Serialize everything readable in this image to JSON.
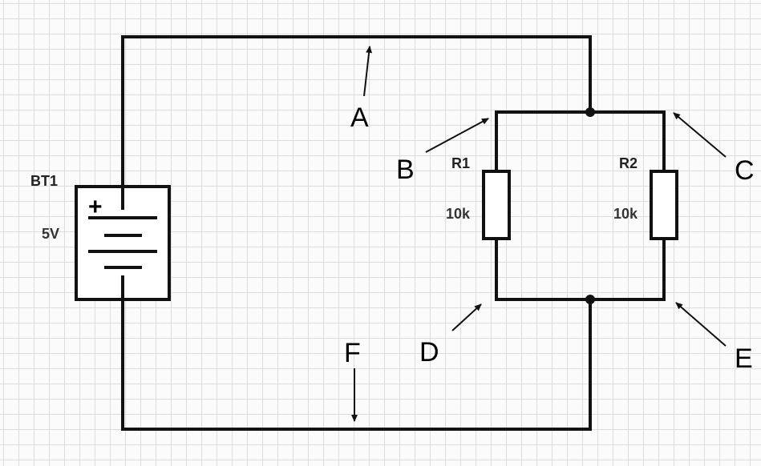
{
  "battery": {
    "ref": "BT1",
    "value": "5V",
    "plus": "+"
  },
  "resistors": [
    {
      "ref": "R1",
      "value": "10k"
    },
    {
      "ref": "R2",
      "value": "10k"
    }
  ],
  "points": {
    "a": "A",
    "b": "B",
    "c": "C",
    "d": "D",
    "e": "E",
    "f": "F"
  },
  "colors": {
    "wire": "#111111",
    "grid": "#dcdcdc",
    "background": "#fbfbfb"
  }
}
